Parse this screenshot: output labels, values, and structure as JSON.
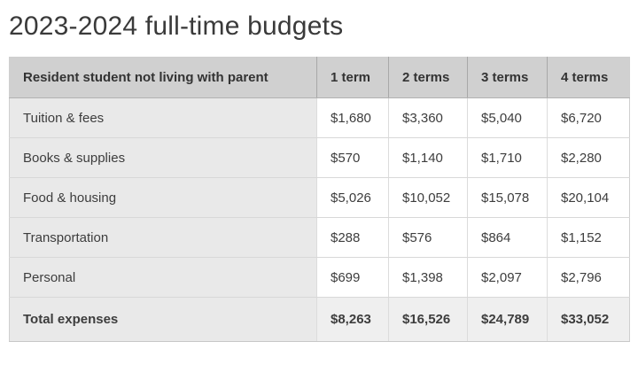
{
  "page": {
    "title": "2023-2024 full-time budgets"
  },
  "table": {
    "header": {
      "label": "Resident student not living with parent",
      "term1": "1 term",
      "term2": "2 terms",
      "term3": "3 terms",
      "term4": "4 terms"
    },
    "rows": [
      {
        "label": "Tuition & fees",
        "values": [
          "$1,680",
          "$3,360",
          "$5,040",
          "$6,720"
        ]
      },
      {
        "label": "Books & supplies",
        "values": [
          "$570",
          "$1,140",
          "$1,710",
          "$2,280"
        ]
      },
      {
        "label": "Food & housing",
        "values": [
          "$5,026",
          "$10,052",
          "$15,078",
          "$20,104"
        ]
      },
      {
        "label": "Transportation",
        "values": [
          "$288",
          "$576",
          "$864",
          "$1,152"
        ]
      },
      {
        "label": "Personal",
        "values": [
          "$699",
          "$1,398",
          "$2,097",
          "$2,796"
        ]
      }
    ],
    "total_row": {
      "label": "Total expenses",
      "values": [
        "$8,263",
        "$16,526",
        "$24,789",
        "$33,052"
      ]
    }
  },
  "colors": {
    "header_bg": "#d0d0d0",
    "label_column_bg": "#e9e9e9",
    "total_row_bg": "#efefef",
    "cell_bg": "#ffffff",
    "header_divider": "#a8a8a8",
    "body_divider": "#dcdcdc",
    "text": "#3d3d3d"
  }
}
